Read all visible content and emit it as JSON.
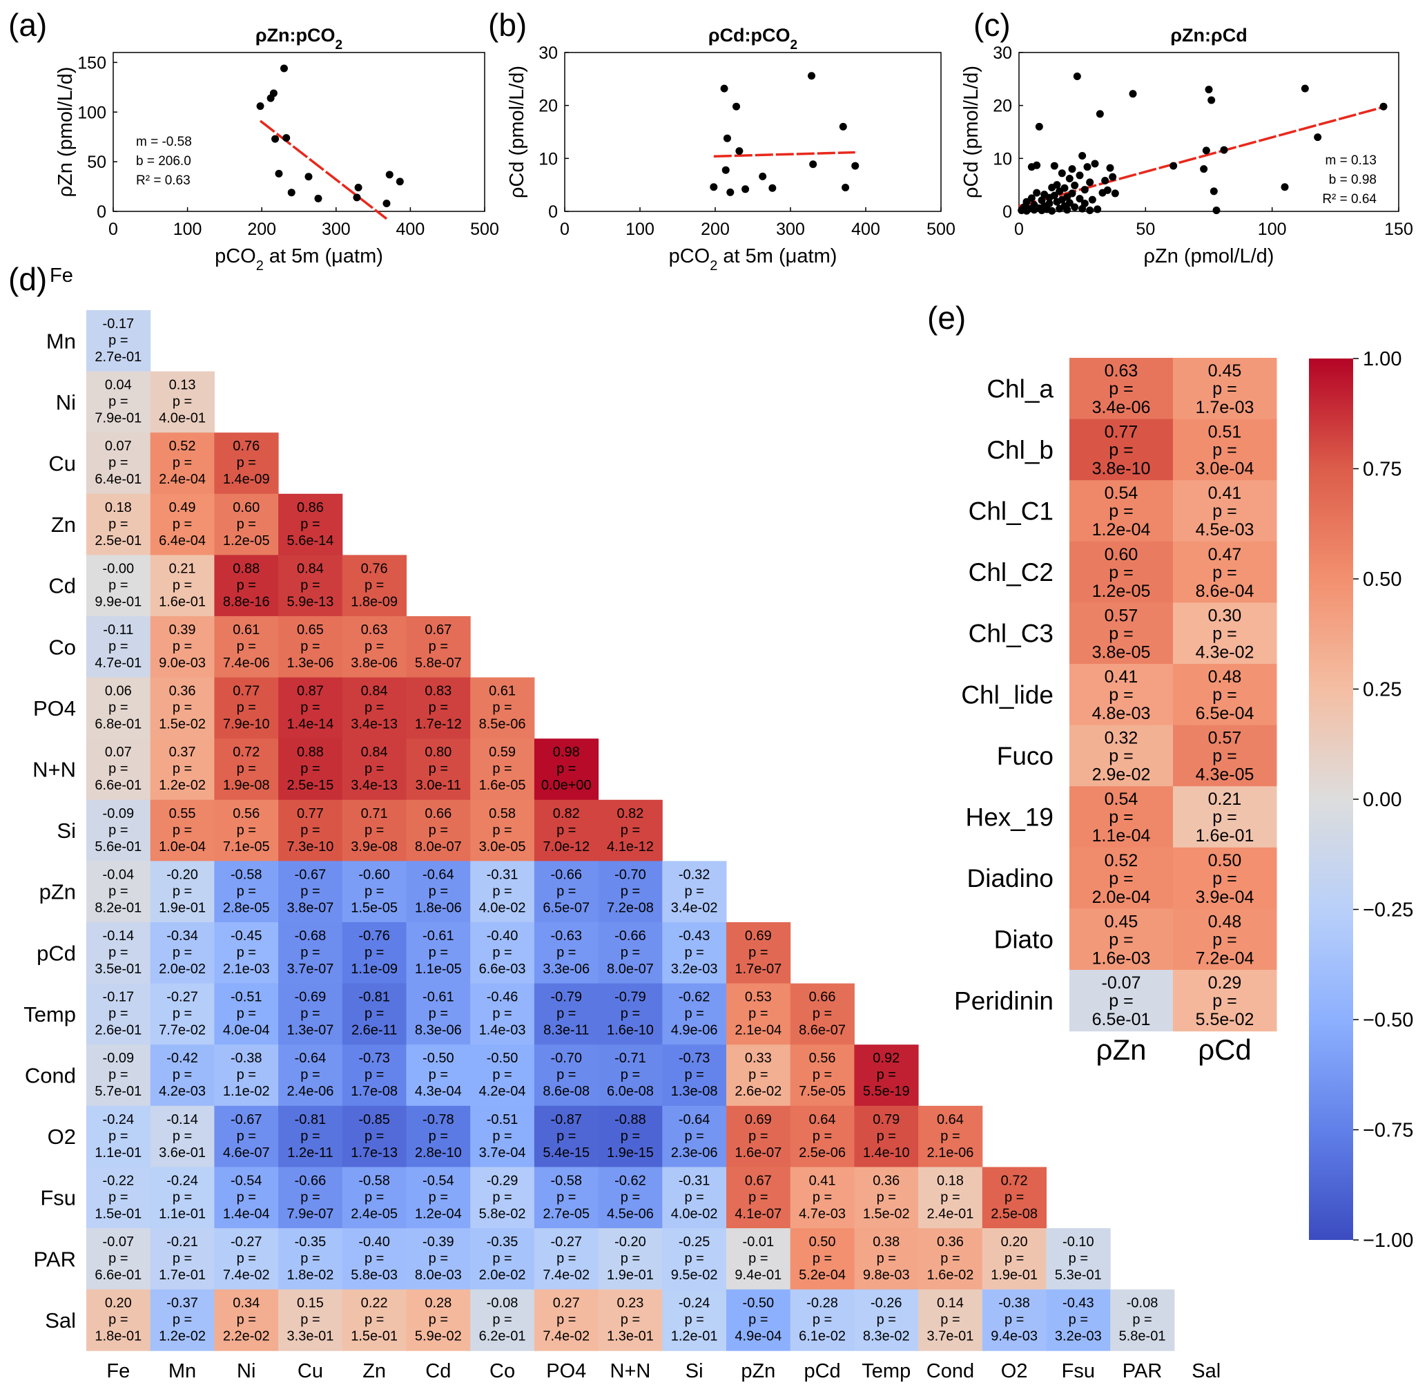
{
  "colors": {
    "point": "#000000",
    "fit_line": "#e8281c",
    "neg_strong": "#3b4cc0",
    "neutral": "#dddddd",
    "pos_strong": "#b40426"
  },
  "chart_data": [
    {
      "type": "scatter",
      "panel": "(a)",
      "title_prefix": "ρZn:pCO",
      "title_sub": "2",
      "xlabel_prefix": "pCO",
      "xlabel_sub": "2",
      "xlabel_suffix": " at 5m (μatm)",
      "ylabel": "ρZn (pmol/L/d)",
      "xlim": [
        0,
        500
      ],
      "ylim": [
        0,
        160
      ],
      "xticks": [
        0,
        100,
        200,
        300,
        400,
        500
      ],
      "yticks": [
        0,
        50,
        100,
        150
      ],
      "stats": [
        "m = -0.58",
        "b = 206.0",
        "R² = 0.63"
      ],
      "stats_position": "middle-left",
      "points": [
        [
          198,
          106
        ],
        [
          212,
          114
        ],
        [
          216,
          119
        ],
        [
          218,
          73
        ],
        [
          223,
          38
        ],
        [
          230,
          144
        ],
        [
          233,
          74
        ],
        [
          240,
          19
        ],
        [
          263,
          35
        ],
        [
          276,
          13
        ],
        [
          328,
          14
        ],
        [
          330,
          24
        ],
        [
          368,
          8
        ],
        [
          372,
          37
        ],
        [
          386,
          30
        ]
      ],
      "fit": {
        "slope": -0.58,
        "intercept": 206.0,
        "x_range": [
          198,
          368
        ]
      }
    },
    {
      "type": "scatter",
      "panel": "(b)",
      "title_prefix": "ρCd:pCO",
      "title_sub": "2",
      "xlabel_prefix": "pCO",
      "xlabel_sub": "2",
      "xlabel_suffix": " at 5m (μatm)",
      "ylabel": "ρCd (pmol/L/d)",
      "xlim": [
        0,
        500
      ],
      "ylim": [
        0,
        30
      ],
      "xticks": [
        0,
        100,
        200,
        300,
        400,
        500
      ],
      "yticks": [
        0,
        10,
        20,
        30
      ],
      "stats": [],
      "points": [
        [
          198,
          4.6
        ],
        [
          212,
          23.2
        ],
        [
          214,
          7.8
        ],
        [
          216,
          13.8
        ],
        [
          220,
          3.6
        ],
        [
          228,
          19.8
        ],
        [
          232,
          11.4
        ],
        [
          240,
          4.2
        ],
        [
          263,
          6.6
        ],
        [
          276,
          4.4
        ],
        [
          328,
          25.6
        ],
        [
          330,
          8.9
        ],
        [
          370,
          16.0
        ],
        [
          373,
          4.5
        ],
        [
          386,
          8.6
        ]
      ],
      "fit": {
        "slope": 0.004,
        "intercept": 9.6,
        "x_range": [
          198,
          386
        ]
      }
    },
    {
      "type": "scatter",
      "panel": "(c)",
      "title": "ρZn:ρCd",
      "xlabel": "ρZn (pmol/L/d)",
      "ylabel": "ρCd (pmol/L/d)",
      "xlim": [
        0,
        150
      ],
      "ylim": [
        0,
        30
      ],
      "xticks": [
        0,
        50,
        100,
        150
      ],
      "yticks": [
        0,
        10,
        20,
        30
      ],
      "stats": [
        "m = 0.13",
        "b = 0.98",
        "R² = 0.64"
      ],
      "stats_position": "bottom-right",
      "points": [
        [
          1,
          0.2
        ],
        [
          2,
          0.8
        ],
        [
          3,
          0.1
        ],
        [
          3,
          1.8
        ],
        [
          4,
          0.5
        ],
        [
          5,
          2.5
        ],
        [
          5,
          8.4
        ],
        [
          6,
          0.3
        ],
        [
          6,
          1.2
        ],
        [
          7,
          8.7
        ],
        [
          7,
          3.5
        ],
        [
          8,
          0.6
        ],
        [
          8,
          16.0
        ],
        [
          9,
          2.1
        ],
        [
          9,
          0.2
        ],
        [
          10,
          3.2
        ],
        [
          10,
          1.0
        ],
        [
          11,
          0.4
        ],
        [
          12,
          2.6
        ],
        [
          12,
          1.5
        ],
        [
          13,
          4.5
        ],
        [
          13,
          0.1
        ],
        [
          14,
          3.0
        ],
        [
          14,
          8.6
        ],
        [
          15,
          1.8
        ],
        [
          15,
          5.0
        ],
        [
          16,
          0.5
        ],
        [
          16,
          3.8
        ],
        [
          17,
          2.2
        ],
        [
          17,
          7.2
        ],
        [
          18,
          1.0
        ],
        [
          18,
          4.4
        ],
        [
          19,
          0.3
        ],
        [
          19,
          2.7
        ],
        [
          20,
          6.2
        ],
        [
          20,
          1.6
        ],
        [
          21,
          3.4
        ],
        [
          21,
          8.0
        ],
        [
          22,
          0.8
        ],
        [
          22,
          4.9
        ],
        [
          23,
          25.5
        ],
        [
          24,
          2.4
        ],
        [
          24,
          6.8
        ],
        [
          25,
          10.5
        ],
        [
          25,
          0.5
        ],
        [
          26,
          1.5
        ],
        [
          26,
          4.1
        ],
        [
          27,
          8.4
        ],
        [
          28,
          0.2
        ],
        [
          28,
          5.5
        ],
        [
          29,
          2.2
        ],
        [
          30,
          9.0
        ],
        [
          31,
          0.4
        ],
        [
          32,
          18.4
        ],
        [
          33,
          3.5
        ],
        [
          34,
          5.8
        ],
        [
          35,
          4.0
        ],
        [
          36,
          8.2
        ],
        [
          37,
          6.5
        ],
        [
          38,
          3.4
        ],
        [
          45,
          22.2
        ],
        [
          61,
          8.6
        ],
        [
          73,
          8.0
        ],
        [
          74,
          11.5
        ],
        [
          75,
          23.0
        ],
        [
          76,
          21.0
        ],
        [
          77,
          3.8
        ],
        [
          78,
          0.2
        ],
        [
          81,
          11.6
        ],
        [
          105,
          4.6
        ],
        [
          113,
          23.2
        ],
        [
          118,
          14.0
        ],
        [
          144,
          19.8
        ]
      ],
      "fit": {
        "slope": 0.13,
        "intercept": 0.98,
        "x_range": [
          0,
          144
        ]
      }
    },
    {
      "type": "heatmap",
      "panel": "(d)",
      "corner_label": "Fe",
      "rows": [
        "Mn",
        "Ni",
        "Cu",
        "Zn",
        "Cd",
        "Co",
        "PO4",
        "N+N",
        "Si",
        "pZn",
        "pCd",
        "Temp",
        "Cond",
        "O2",
        "Fsu",
        "PAR",
        "Sal"
      ],
      "columns": [
        "Fe",
        "Mn",
        "Ni",
        "Cu",
        "Zn",
        "Cd",
        "Co",
        "PO4",
        "N+N",
        "Si",
        "pZn",
        "pCd",
        "Temp",
        "Cond",
        "O2",
        "Fsu",
        "PAR",
        "Sal"
      ],
      "p_label": "p =",
      "r": [
        [
          "-0.17"
        ],
        [
          "0.04",
          "0.13"
        ],
        [
          "0.07",
          "0.52",
          "0.76"
        ],
        [
          "0.18",
          "0.49",
          "0.60",
          "0.86"
        ],
        [
          "-0.00",
          "0.21",
          "0.88",
          "0.84",
          "0.76"
        ],
        [
          "-0.11",
          "0.39",
          "0.61",
          "0.65",
          "0.63",
          "0.67"
        ],
        [
          "0.06",
          "0.36",
          "0.77",
          "0.87",
          "0.84",
          "0.83",
          "0.61"
        ],
        [
          "0.07",
          "0.37",
          "0.72",
          "0.88",
          "0.84",
          "0.80",
          "0.59",
          "0.98"
        ],
        [
          "-0.09",
          "0.55",
          "0.56",
          "0.77",
          "0.71",
          "0.66",
          "0.58",
          "0.82",
          "0.82"
        ],
        [
          "-0.04",
          "-0.20",
          "-0.58",
          "-0.67",
          "-0.60",
          "-0.64",
          "-0.31",
          "-0.66",
          "-0.70",
          "-0.32"
        ],
        [
          "-0.14",
          "-0.34",
          "-0.45",
          "-0.68",
          "-0.76",
          "-0.61",
          "-0.40",
          "-0.63",
          "-0.66",
          "-0.43",
          "0.69"
        ],
        [
          "-0.17",
          "-0.27",
          "-0.51",
          "-0.69",
          "-0.81",
          "-0.61",
          "-0.46",
          "-0.79",
          "-0.79",
          "-0.62",
          "0.53",
          "0.66"
        ],
        [
          "-0.09",
          "-0.42",
          "-0.38",
          "-0.64",
          "-0.73",
          "-0.50",
          "-0.50",
          "-0.70",
          "-0.71",
          "-0.73",
          "0.33",
          "0.56",
          "0.92"
        ],
        [
          "-0.24",
          "-0.14",
          "-0.67",
          "-0.81",
          "-0.85",
          "-0.78",
          "-0.51",
          "-0.87",
          "-0.88",
          "-0.64",
          "0.69",
          "0.64",
          "0.79",
          "0.64"
        ],
        [
          "-0.22",
          "-0.24",
          "-0.54",
          "-0.66",
          "-0.58",
          "-0.54",
          "-0.29",
          "-0.58",
          "-0.62",
          "-0.31",
          "0.67",
          "0.41",
          "0.36",
          "0.18",
          "0.72"
        ],
        [
          "-0.07",
          "-0.21",
          "-0.27",
          "-0.35",
          "-0.40",
          "-0.39",
          "-0.35",
          "-0.27",
          "-0.20",
          "-0.25",
          "-0.01",
          "0.50",
          "0.38",
          "0.36",
          "0.20",
          "-0.10"
        ],
        [
          "0.20",
          "-0.37",
          "0.34",
          "0.15",
          "0.22",
          "0.28",
          "-0.08",
          "0.27",
          "0.23",
          "-0.24",
          "-0.50",
          "-0.28",
          "-0.26",
          "0.14",
          "-0.38",
          "-0.43",
          "-0.08"
        ]
      ],
      "p": [
        [
          "2.7e-01"
        ],
        [
          "7.9e-01",
          "4.0e-01"
        ],
        [
          "6.4e-01",
          "2.4e-04",
          "1.4e-09"
        ],
        [
          "2.5e-01",
          "6.4e-04",
          "1.2e-05",
          "5.6e-14"
        ],
        [
          "9.9e-01",
          "1.6e-01",
          "8.8e-16",
          "5.9e-13",
          "1.8e-09"
        ],
        [
          "4.7e-01",
          "9.0e-03",
          "7.4e-06",
          "1.3e-06",
          "3.8e-06",
          "5.8e-07"
        ],
        [
          "6.8e-01",
          "1.5e-02",
          "7.9e-10",
          "1.4e-14",
          "3.4e-13",
          "1.7e-12",
          "8.5e-06"
        ],
        [
          "6.6e-01",
          "1.2e-02",
          "1.9e-08",
          "2.5e-15",
          "3.4e-13",
          "3.0e-11",
          "1.6e-05",
          "0.0e+00"
        ],
        [
          "5.6e-01",
          "1.0e-04",
          "7.1e-05",
          "7.3e-10",
          "3.9e-08",
          "8.0e-07",
          "3.0e-05",
          "7.0e-12",
          "4.1e-12"
        ],
        [
          "8.2e-01",
          "1.9e-01",
          "2.8e-05",
          "3.8e-07",
          "1.5e-05",
          "1.8e-06",
          "4.0e-02",
          "6.5e-07",
          "7.2e-08",
          "3.4e-02"
        ],
        [
          "3.5e-01",
          "2.0e-02",
          "2.1e-03",
          "3.7e-07",
          "1.1e-09",
          "1.1e-05",
          "6.6e-03",
          "3.3e-06",
          "8.0e-07",
          "3.2e-03",
          "1.7e-07"
        ],
        [
          "2.6e-01",
          "7.7e-02",
          "4.0e-04",
          "1.3e-07",
          "2.6e-11",
          "8.3e-06",
          "1.4e-03",
          "8.3e-11",
          "1.6e-10",
          "4.9e-06",
          "2.1e-04",
          "8.6e-07"
        ],
        [
          "5.7e-01",
          "4.2e-03",
          "1.1e-02",
          "2.4e-06",
          "1.7e-08",
          "4.3e-04",
          "4.2e-04",
          "8.6e-08",
          "6.0e-08",
          "1.3e-08",
          "2.6e-02",
          "7.5e-05",
          "5.5e-19"
        ],
        [
          "1.1e-01",
          "3.6e-01",
          "4.6e-07",
          "1.2e-11",
          "1.7e-13",
          "2.8e-10",
          "3.7e-04",
          "5.4e-15",
          "1.9e-15",
          "2.3e-06",
          "1.6e-07",
          "2.5e-06",
          "1.4e-10",
          "2.1e-06"
        ],
        [
          "1.5e-01",
          "1.1e-01",
          "1.4e-04",
          "7.9e-07",
          "2.4e-05",
          "1.2e-04",
          "5.8e-02",
          "2.7e-05",
          "4.5e-06",
          "4.0e-02",
          "4.1e-07",
          "4.7e-03",
          "1.5e-02",
          "2.4e-01",
          "2.5e-08"
        ],
        [
          "6.6e-01",
          "1.7e-01",
          "7.4e-02",
          "1.8e-02",
          "5.8e-03",
          "8.0e-03",
          "2.0e-02",
          "7.4e-02",
          "1.9e-01",
          "9.5e-02",
          "9.4e-01",
          "5.2e-04",
          "9.8e-03",
          "1.6e-02",
          "1.9e-01",
          "5.3e-01"
        ],
        [
          "1.8e-01",
          "1.2e-02",
          "2.2e-02",
          "3.3e-01",
          "1.5e-01",
          "5.9e-02",
          "6.2e-01",
          "7.4e-02",
          "1.3e-01",
          "1.2e-01",
          "4.9e-04",
          "6.1e-02",
          "8.3e-02",
          "3.7e-01",
          "9.4e-03",
          "3.2e-03",
          "5.8e-01"
        ]
      ]
    },
    {
      "type": "heatmap",
      "panel": "(e)",
      "rows": [
        "Chl_a",
        "Chl_b",
        "Chl_C1",
        "Chl_C2",
        "Chl_C3",
        "Chl_lide",
        "Fuco",
        "Hex_19",
        "Diadino",
        "Diato",
        "Peridinin"
      ],
      "columns": [
        "ρZn",
        "ρCd"
      ],
      "p_label": "p =",
      "r": [
        [
          "0.63",
          "0.45"
        ],
        [
          "0.77",
          "0.51"
        ],
        [
          "0.54",
          "0.41"
        ],
        [
          "0.60",
          "0.47"
        ],
        [
          "0.57",
          "0.30"
        ],
        [
          "0.41",
          "0.48"
        ],
        [
          "0.32",
          "0.57"
        ],
        [
          "0.54",
          "0.21"
        ],
        [
          "0.52",
          "0.50"
        ],
        [
          "0.45",
          "0.48"
        ],
        [
          "-0.07",
          "0.29"
        ]
      ],
      "p": [
        [
          "3.4e-06",
          "1.7e-03"
        ],
        [
          "3.8e-10",
          "3.0e-04"
        ],
        [
          "1.2e-04",
          "4.5e-03"
        ],
        [
          "1.2e-05",
          "8.6e-04"
        ],
        [
          "3.8e-05",
          "4.3e-02"
        ],
        [
          "4.8e-03",
          "6.5e-04"
        ],
        [
          "2.9e-02",
          "4.3e-05"
        ],
        [
          "1.1e-04",
          "1.6e-01"
        ],
        [
          "2.0e-04",
          "3.9e-04"
        ],
        [
          "1.6e-03",
          "7.2e-04"
        ],
        [
          "6.5e-01",
          "5.5e-02"
        ]
      ]
    },
    {
      "type": "colorbar",
      "range": [
        -1,
        1
      ],
      "ticks": [
        "1.00",
        "0.75",
        "0.50",
        "0.25",
        "0.00",
        "−0.25",
        "−0.50",
        "−0.75",
        "−1.00"
      ]
    }
  ]
}
